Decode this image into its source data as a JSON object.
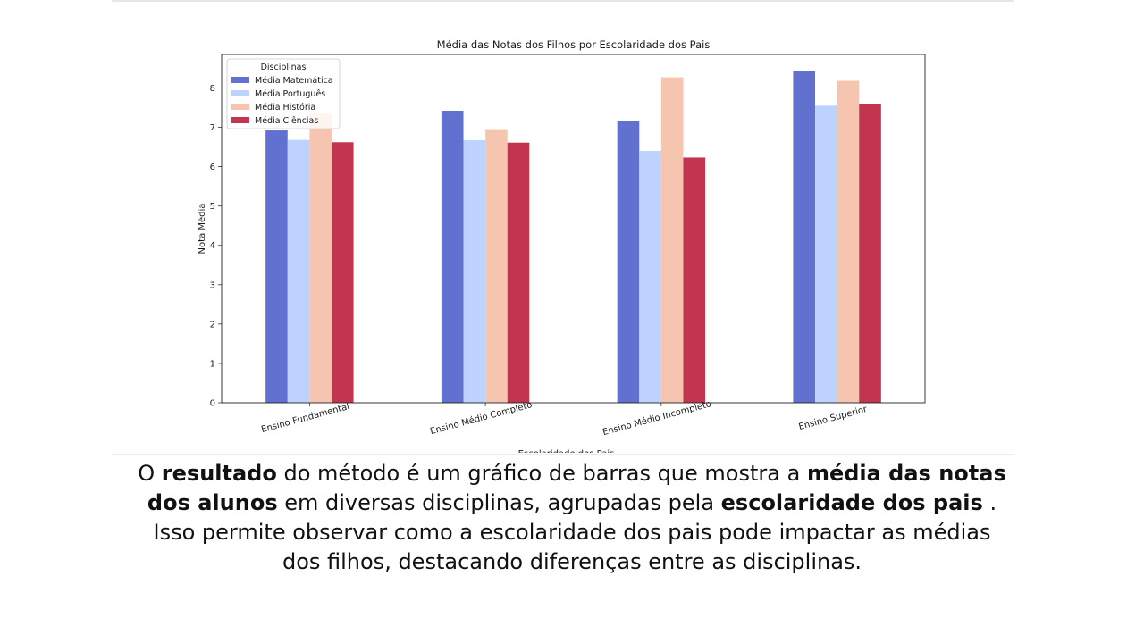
{
  "chart_data": {
    "type": "bar",
    "title": "Média das Notas dos Filhos por Escolaridade dos Pais",
    "xlabel": "Escolaridade dos Pais",
    "ylabel": "Nota Média",
    "ylim": [
      0,
      8.85
    ],
    "yticks": [
      0,
      1,
      2,
      3,
      4,
      5,
      6,
      7,
      8
    ],
    "categories": [
      "Ensino Fundamental",
      "Ensino Médio Completo",
      "Ensino Médio Incompleto",
      "Ensino Superior"
    ],
    "legend": {
      "title": "Disciplinas",
      "placement": "top-left"
    },
    "grid": false,
    "series": [
      {
        "name": "Média Matemática",
        "color": "#6270cf",
        "values": [
          6.92,
          7.42,
          7.16,
          8.42
        ]
      },
      {
        "name": "Média Português",
        "color": "#bdd3fd",
        "values": [
          6.68,
          6.67,
          6.4,
          7.55
        ]
      },
      {
        "name": "Média História",
        "color": "#f6c5af",
        "values": [
          7.35,
          6.93,
          8.27,
          8.18
        ]
      },
      {
        "name": "Média Ciências",
        "color": "#c3354f",
        "values": [
          6.62,
          6.61,
          6.23,
          7.6
        ]
      }
    ]
  },
  "caption": {
    "line1": {
      "t1": "O ",
      "b1": "resultado",
      "t2": " do método é um gráfico de barras que mostra a ",
      "b2": "média das notas"
    },
    "line2": {
      "b1": "dos alunos",
      "t1": " em diversas disciplinas, agrupadas pela ",
      "b2": "escolaridade dos pais",
      "t2": " ."
    },
    "line3": "Isso permite observar como a escolaridade dos pais pode impactar as médias",
    "line4": "dos filhos, destacando diferenças entre as disciplinas."
  }
}
